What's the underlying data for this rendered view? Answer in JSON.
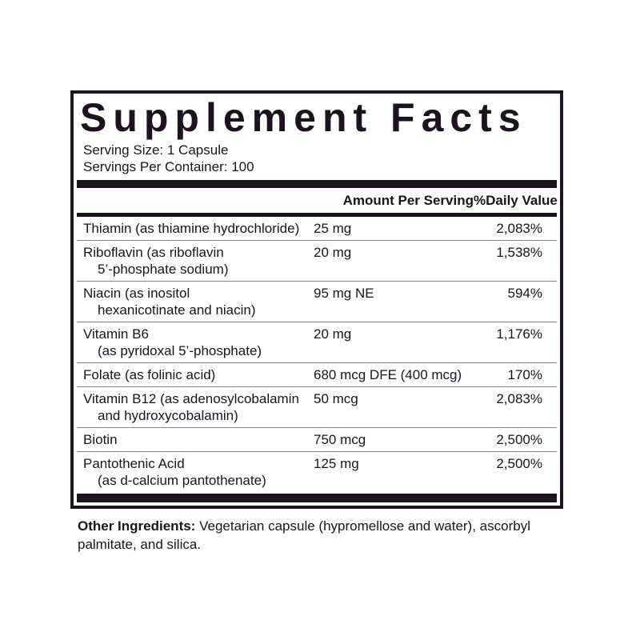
{
  "title": "Supplement Facts",
  "serving_size": "Serving Size: 1 Capsule",
  "servings_per_container": "Servings Per Container: 100",
  "header": {
    "amount": "Amount Per Serving",
    "dv": "%Daily Value"
  },
  "rows": [
    {
      "name": "Thiamin (as thiamine hydrochloride)",
      "sub": "",
      "amount": "25 mg",
      "dv": "2,083%"
    },
    {
      "name": "Riboflavin (as riboflavin",
      "sub": "5’-phosphate sodium)",
      "amount": "20 mg",
      "dv": "1,538%"
    },
    {
      "name": "Niacin (as inositol",
      "sub": "hexanicotinate and niacin)",
      "amount": "95 mg NE",
      "dv": "594%"
    },
    {
      "name": "Vitamin B6",
      "sub": "(as pyridoxal 5’-phosphate)",
      "amount": "20 mg",
      "dv": "1,176%"
    },
    {
      "name": "Folate (as folinic acid)",
      "sub": "",
      "amount": "680 mcg DFE (400 mcg)",
      "dv": "170%"
    },
    {
      "name": "Vitamin B12 (as adenosylcobalamin",
      "sub": "and hydroxycobalamin)",
      "amount": "50 mcg",
      "dv": "2,083%"
    },
    {
      "name": "Biotin",
      "sub": "",
      "amount": "750 mcg",
      "dv": "2,500%"
    },
    {
      "name": "Pantothenic Acid",
      "sub": "(as d-calcium pantothenate)",
      "amount": "125 mg",
      "dv": "2,500%"
    }
  ],
  "other": {
    "label": "Other Ingredients:",
    "text": " Vegetarian capsule (hypromellose and water), ascorbyl palmitate, and silica."
  }
}
